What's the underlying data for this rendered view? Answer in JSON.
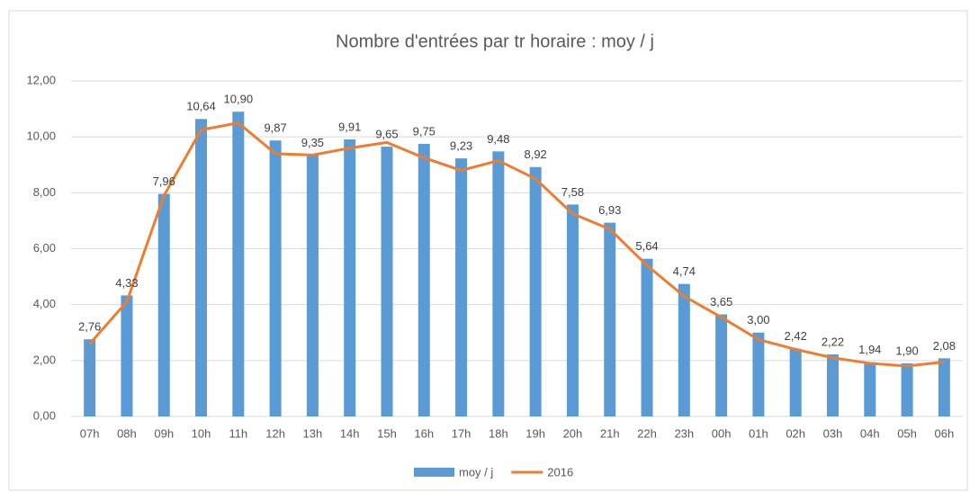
{
  "chart_data": {
    "type": "bar",
    "title": "Nombre d'entrées par tr horaire : moy / j",
    "categories": [
      "07h",
      "08h",
      "09h",
      "10h",
      "11h",
      "12h",
      "13h",
      "14h",
      "15h",
      "16h",
      "17h",
      "18h",
      "19h",
      "20h",
      "21h",
      "22h",
      "23h",
      "00h",
      "01h",
      "02h",
      "03h",
      "04h",
      "05h",
      "06h"
    ],
    "series": [
      {
        "name": "moy / j",
        "type": "bar",
        "color": "#5b9bd5",
        "values": [
          2.76,
          4.33,
          7.96,
          10.64,
          10.9,
          9.87,
          9.35,
          9.91,
          9.65,
          9.75,
          9.23,
          9.48,
          8.92,
          7.58,
          6.93,
          5.64,
          4.74,
          3.65,
          3.0,
          2.42,
          2.22,
          1.94,
          1.9,
          2.08
        ],
        "value_labels": [
          "2,76",
          "4,33",
          "7,96",
          "10,64",
          "10,90",
          "9,87",
          "9,35",
          "9,91",
          "9,65",
          "9,75",
          "9,23",
          "9,48",
          "8,92",
          "7,58",
          "6,93",
          "5,64",
          "4,74",
          "3,65",
          "3,00",
          "2,42",
          "2,22",
          "1,94",
          "1,90",
          "2,08"
        ]
      },
      {
        "name": "2016",
        "type": "line",
        "color": "#ed7d31",
        "values": [
          2.6,
          4.1,
          7.9,
          10.25,
          10.5,
          9.4,
          9.35,
          9.6,
          9.8,
          9.25,
          8.8,
          9.15,
          8.5,
          7.25,
          6.7,
          5.4,
          4.3,
          3.55,
          2.75,
          2.4,
          2.1,
          1.9,
          1.8,
          1.95
        ]
      }
    ],
    "ylim": [
      0,
      12
    ],
    "yticks": [
      {
        "value": 0,
        "label": "0,00"
      },
      {
        "value": 2,
        "label": "2,00"
      },
      {
        "value": 4,
        "label": "4,00"
      },
      {
        "value": 6,
        "label": "6,00"
      },
      {
        "value": 8,
        "label": "8,00"
      },
      {
        "value": 10,
        "label": "10,00"
      },
      {
        "value": 12,
        "label": "12,00"
      }
    ],
    "grid": true,
    "legend": "bottom"
  }
}
